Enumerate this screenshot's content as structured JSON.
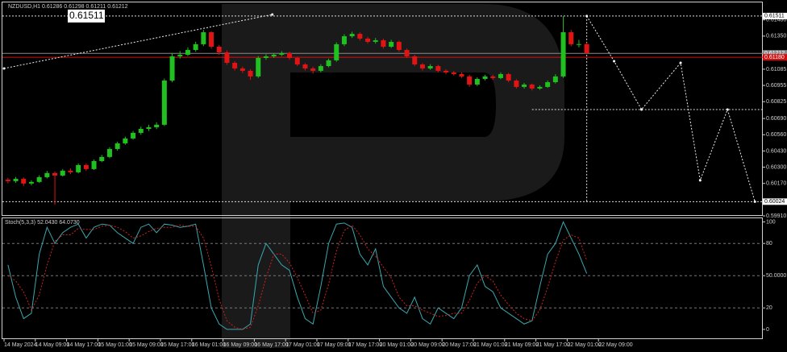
{
  "chart_data": [
    {
      "type": "candlestick",
      "title": "NZDUSD,H1  0.61286 0.61298 0.61211 0.61212",
      "bull_color": "#1fc01f",
      "bear_color": "#e01414",
      "open": [
        0.602,
        0.60188,
        0.60207,
        0.60169,
        0.60182,
        0.6022,
        0.60253,
        0.60233,
        0.60272,
        0.60259,
        0.60317,
        0.60285,
        0.60349,
        0.60382,
        0.60446,
        0.60491,
        0.6053,
        0.60575,
        0.60607,
        0.6062,
        0.6064,
        0.60994,
        0.61188,
        0.61201,
        0.61239,
        0.61285,
        0.61381,
        0.61265,
        0.6122,
        0.61136,
        0.61091,
        0.61072,
        0.61027,
        0.61175,
        0.61188,
        0.61201,
        0.61214,
        0.61175,
        0.61123,
        0.61091,
        0.61072,
        0.6111,
        0.61156,
        0.61285,
        0.61349,
        0.61368,
        0.6133,
        0.61304,
        0.61317,
        0.61265,
        0.61304,
        0.61239,
        0.61188,
        0.61123,
        0.61091,
        0.6111,
        0.61072,
        0.61059,
        0.61046,
        0.61027,
        0.60962,
        0.61007,
        0.61027,
        0.61014,
        0.61046,
        0.60994,
        0.60943,
        0.60962,
        0.6093,
        0.60943,
        0.60981,
        0.61027,
        0.61381,
        0.61285,
        0.61286
      ],
      "high": [
        0.60215,
        0.60222,
        0.60218,
        0.60195,
        0.60235,
        0.6027,
        0.60265,
        0.60285,
        0.6029,
        0.6033,
        0.60328,
        0.60362,
        0.60398,
        0.6046,
        0.60505,
        0.60545,
        0.6059,
        0.60625,
        0.6064,
        0.6066,
        0.6101,
        0.61215,
        0.6123,
        0.6126,
        0.61305,
        0.614,
        0.6139,
        0.6128,
        0.61235,
        0.6115,
        0.61105,
        0.61085,
        0.6119,
        0.61205,
        0.61215,
        0.6123,
        0.61225,
        0.61185,
        0.61135,
        0.61105,
        0.61125,
        0.6117,
        0.613,
        0.61365,
        0.61385,
        0.6138,
        0.61345,
        0.61335,
        0.6133,
        0.6132,
        0.61315,
        0.6125,
        0.612,
        0.61135,
        0.61125,
        0.6112,
        0.61085,
        0.6107,
        0.6106,
        0.6104,
        0.6102,
        0.6104,
        0.6104,
        0.6106,
        0.61055,
        0.61005,
        0.60975,
        0.6097,
        0.60955,
        0.60995,
        0.61045,
        0.61511,
        0.614,
        0.6132,
        0.61298
      ],
      "low": [
        0.6017,
        0.60175,
        0.6015,
        0.60155,
        0.60175,
        0.6021,
        0.6,
        0.60225,
        0.60245,
        0.6025,
        0.6027,
        0.60278,
        0.6034,
        0.60372,
        0.60432,
        0.6048,
        0.6052,
        0.6056,
        0.6059,
        0.60605,
        0.6063,
        0.6098,
        0.6117,
        0.6119,
        0.61225,
        0.6127,
        0.6125,
        0.612,
        0.6112,
        0.61075,
        0.61055,
        0.61,
        0.61015,
        0.6116,
        0.61175,
        0.6119,
        0.6116,
        0.6111,
        0.61075,
        0.6105,
        0.6106,
        0.611,
        0.61145,
        0.6127,
        0.61335,
        0.61315,
        0.6129,
        0.6129,
        0.6125,
        0.61255,
        0.61225,
        0.61175,
        0.6111,
        0.61075,
        0.6108,
        0.6106,
        0.61045,
        0.61035,
        0.61015,
        0.60945,
        0.6095,
        0.60995,
        0.61,
        0.61005,
        0.6098,
        0.6093,
        0.6093,
        0.60915,
        0.6092,
        0.60935,
        0.6097,
        0.61015,
        0.6127,
        0.6126,
        0.61211
      ],
      "close": [
        0.60188,
        0.60207,
        0.60169,
        0.60182,
        0.6022,
        0.60253,
        0.60233,
        0.60272,
        0.60259,
        0.60317,
        0.60285,
        0.60349,
        0.60382,
        0.60446,
        0.60491,
        0.6053,
        0.60575,
        0.60607,
        0.6062,
        0.6064,
        0.60994,
        0.61188,
        0.61201,
        0.61239,
        0.61285,
        0.61381,
        0.61265,
        0.6122,
        0.61136,
        0.61091,
        0.61072,
        0.61027,
        0.61175,
        0.61188,
        0.61201,
        0.61214,
        0.61175,
        0.61123,
        0.61091,
        0.61072,
        0.6111,
        0.61156,
        0.61285,
        0.61349,
        0.61368,
        0.6133,
        0.61304,
        0.61317,
        0.61265,
        0.61304,
        0.61239,
        0.61188,
        0.61123,
        0.61091,
        0.6111,
        0.61072,
        0.61059,
        0.61046,
        0.61027,
        0.60962,
        0.61007,
        0.61027,
        0.61014,
        0.61046,
        0.60994,
        0.60943,
        0.60962,
        0.6093,
        0.60943,
        0.60981,
        0.61027,
        0.61381,
        0.61285,
        0.61286,
        0.61212
      ],
      "ylim": [
        0.5991,
        0.6162
      ],
      "yticks": [
        {
          "value": 0.6148,
          "label": "0.61480"
        },
        {
          "value": 0.6135,
          "label": "0.61350"
        },
        0.61085,
        0.60955,
        0.60825,
        {
          "value": 0.6069,
          "label": "0.60690"
        },
        {
          "value": 0.6056,
          "label": "0.60560"
        },
        {
          "value": 0.6043,
          "label": "0.60430"
        },
        {
          "value": 0.603,
          "label": "0.60300"
        },
        {
          "value": 0.6017,
          "label": "0.60170"
        },
        {
          "value": 0.5991,
          "label": "0.59910"
        }
      ],
      "levels": [
        {
          "value": 0.61511,
          "label": "0.61511"
        },
        {
          "value": 0.60024,
          "label": "0.60024"
        }
      ],
      "price_lines": [
        {
          "value": 0.61212,
          "label": "0.61212",
          "color": "#8a8a8a"
        },
        {
          "value": 0.6118,
          "label": "0.61180",
          "color": "#d01010"
        }
      ],
      "trendline": {
        "x": [
          -0.5,
          33.8
        ],
        "values": [
          0.61091,
          0.61523
        ]
      },
      "forecast": {
        "x": [
          74,
          77.5,
          81,
          86,
          88.5,
          92,
          95.5
        ],
        "values": [
          0.61511,
          0.61149,
          0.60762,
          0.61136,
          0.60195,
          0.60762,
          0.60024
        ]
      },
      "mid_level": {
        "x": [
          67,
          97
        ],
        "value": 0.60762
      },
      "time_labels": [
        "14 May 2024",
        "14 May 09:00",
        "14 May 17:00",
        "15 May 01:00",
        "15 May 09:00",
        "15 May 17:00",
        "16 May 01:00",
        "16 May 09:00",
        "16 May 17:00",
        "17 May 01:00",
        "17 May 09:00",
        "17 May 17:00",
        "20 May 01:00",
        "20 May 09:00",
        "20 May 17:00",
        "21 May 01:00",
        "21 May 09:00",
        "21 May 17:00",
        "22 May 01:00",
        "22 May 09:00"
      ]
    },
    {
      "type": "line",
      "title": "Stoch(5,3,3) 52.0430 64.0730",
      "ylim": [
        -8.3,
        103.4
      ],
      "yticks": [
        100,
        80,
        {
          "value": 50,
          "label": "50.0000"
        },
        20,
        0
      ],
      "series": [
        {
          "name": "Main",
          "color": "#3aa8b0",
          "dash": false,
          "values": [
            60,
            30,
            10,
            15,
            70,
            95,
            80,
            90,
            95,
            98,
            85,
            95,
            98,
            97,
            90,
            85,
            80,
            95,
            98,
            90,
            98,
            97,
            95,
            96,
            98,
            60,
            20,
            5,
            0,
            0,
            0,
            5,
            60,
            80,
            70,
            60,
            55,
            30,
            10,
            5,
            40,
            80,
            98,
            99,
            95,
            70,
            60,
            75,
            40,
            30,
            20,
            15,
            30,
            10,
            5,
            20,
            15,
            10,
            20,
            50,
            60,
            40,
            35,
            20,
            15,
            10,
            5,
            8,
            40,
            70,
            80,
            100,
            85,
            70,
            52.043
          ]
        },
        {
          "name": "Signal",
          "color": "#d02020",
          "dash": true,
          "values": [
            50,
            45,
            35,
            18,
            32,
            60,
            82,
            88,
            88,
            94,
            93,
            93,
            96,
            97,
            95,
            91,
            85,
            87,
            91,
            94,
            95,
            95,
            97,
            96,
            96,
            85,
            59,
            28,
            8,
            2,
            0,
            2,
            22,
            48,
            70,
            70,
            62,
            48,
            32,
            15,
            18,
            42,
            73,
            92,
            97,
            88,
            75,
            68,
            58,
            48,
            30,
            22,
            22,
            18,
            15,
            12,
            13,
            15,
            15,
            27,
            43,
            50,
            45,
            32,
            23,
            15,
            10,
            8,
            18,
            39,
            63,
            83,
            88,
            85,
            64.073
          ]
        }
      ]
    }
  ]
}
